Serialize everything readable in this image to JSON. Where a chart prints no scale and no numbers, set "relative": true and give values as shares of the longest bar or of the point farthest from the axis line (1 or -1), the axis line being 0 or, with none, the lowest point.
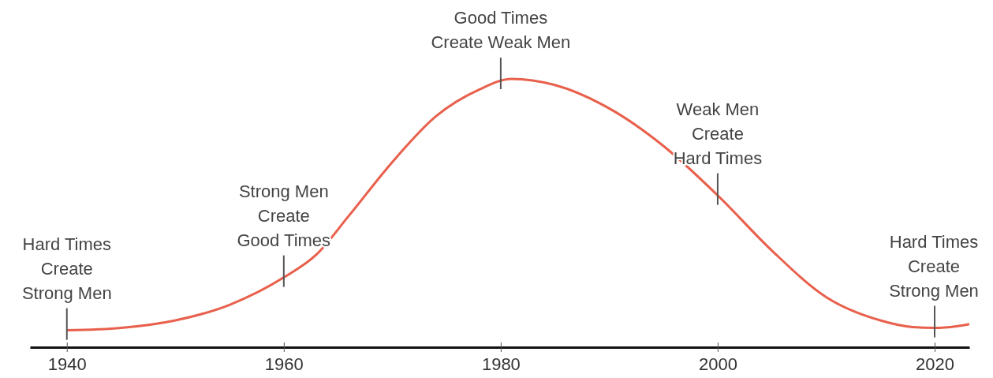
{
  "chart_data": {
    "type": "line",
    "relative": true,
    "x": [
      1940,
      1945,
      1950,
      1955,
      1960,
      1963,
      1966,
      1970,
      1974,
      1978,
      1981,
      1985,
      1990,
      1995,
      2000,
      2005,
      2010,
      2015,
      2018,
      2020,
      2022,
      2023.2
    ],
    "series": [
      {
        "color": "#e8604c",
        "values": [
          0.063,
          0.072,
          0.1,
          0.158,
          0.26,
          0.345,
          0.49,
          0.69,
          0.86,
          0.96,
          1.0,
          0.977,
          0.89,
          0.75,
          0.566,
          0.36,
          0.187,
          0.1,
          0.075,
          0.072,
          0.078,
          0.086
        ]
      }
    ],
    "xlim": [
      1936.6,
      2023.2
    ],
    "xticks": [
      1940,
      1960,
      1980,
      2000,
      2020
    ],
    "grid": false,
    "marker": "none",
    "line_style": "solid",
    "annotations": [
      {
        "text": "Hard Times\nCreate\nStrong Men",
        "x": 1940,
        "y": 0.063
      },
      {
        "text": "Strong Men\nCreate\nGood Times",
        "x": 1960,
        "y": 0.26
      },
      {
        "text": "Good Times\nCreate Weak Men",
        "x": 1980,
        "y": 0.997
      },
      {
        "text": "Weak Men\nCreate\nHard Times",
        "x": 2000,
        "y": 0.566
      },
      {
        "text": "Hard Times\nCreate\nStrong Men",
        "x": 2020,
        "y": 0.072
      }
    ]
  }
}
